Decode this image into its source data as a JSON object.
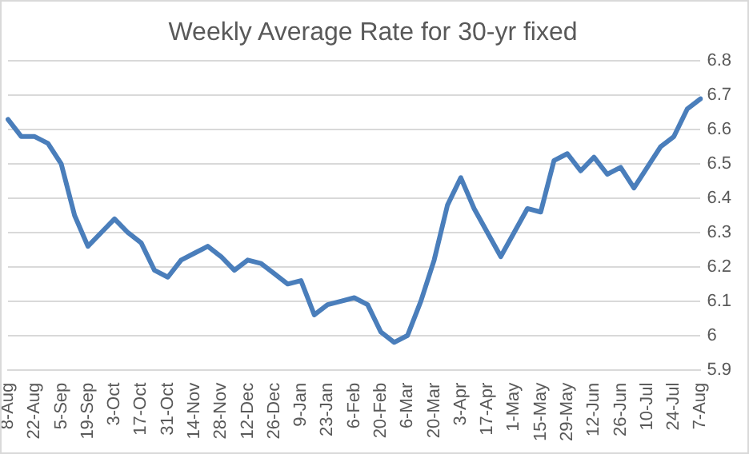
{
  "chart_data": {
    "type": "line",
    "title": "Weekly Average Rate for 30-yr fixed",
    "categories": [
      "8-Aug",
      null,
      "22-Aug",
      null,
      "5-Sep",
      null,
      "19-Sep",
      null,
      "3-Oct",
      null,
      "17-Oct",
      null,
      "31-Oct",
      null,
      "14-Nov",
      null,
      "28-Nov",
      null,
      "12-Dec",
      null,
      "26-Dec",
      null,
      "9-Jan",
      null,
      "23-Jan",
      null,
      "6-Feb",
      null,
      "20-Feb",
      null,
      "6-Mar",
      null,
      "20-Mar",
      null,
      "3-Apr",
      null,
      "17-Apr",
      null,
      "1-May",
      null,
      "15-May",
      null,
      "29-May",
      null,
      "12-Jun",
      null,
      "26-Jun",
      null,
      "10-Jul",
      null,
      "24-Jul",
      null,
      "7-Aug"
    ],
    "series": [
      {
        "color": "#4a7ebb",
        "values": [
          6.63,
          6.58,
          6.58,
          6.56,
          6.5,
          6.35,
          6.26,
          6.3,
          6.34,
          6.3,
          6.27,
          6.19,
          6.17,
          6.22,
          6.24,
          6.26,
          6.23,
          6.19,
          6.22,
          6.21,
          6.18,
          6.15,
          6.16,
          6.06,
          6.09,
          6.1,
          6.11,
          6.09,
          6.01,
          5.98,
          6.0,
          6.1,
          6.22,
          6.38,
          6.46,
          6.37,
          6.3,
          6.23,
          6.3,
          6.37,
          6.36,
          6.51,
          6.53,
          6.48,
          6.52,
          6.47,
          6.49,
          6.43,
          6.49,
          6.55,
          6.58,
          6.66,
          6.69
        ]
      }
    ],
    "ylim": [
      5.9,
      6.8
    ],
    "yticks": [
      5.9,
      6,
      6.1,
      6.2,
      6.3,
      6.4,
      6.5,
      6.6,
      6.7,
      6.8
    ],
    "grid": "y",
    "legend": false,
    "marker": "none",
    "line_style": "solid"
  }
}
